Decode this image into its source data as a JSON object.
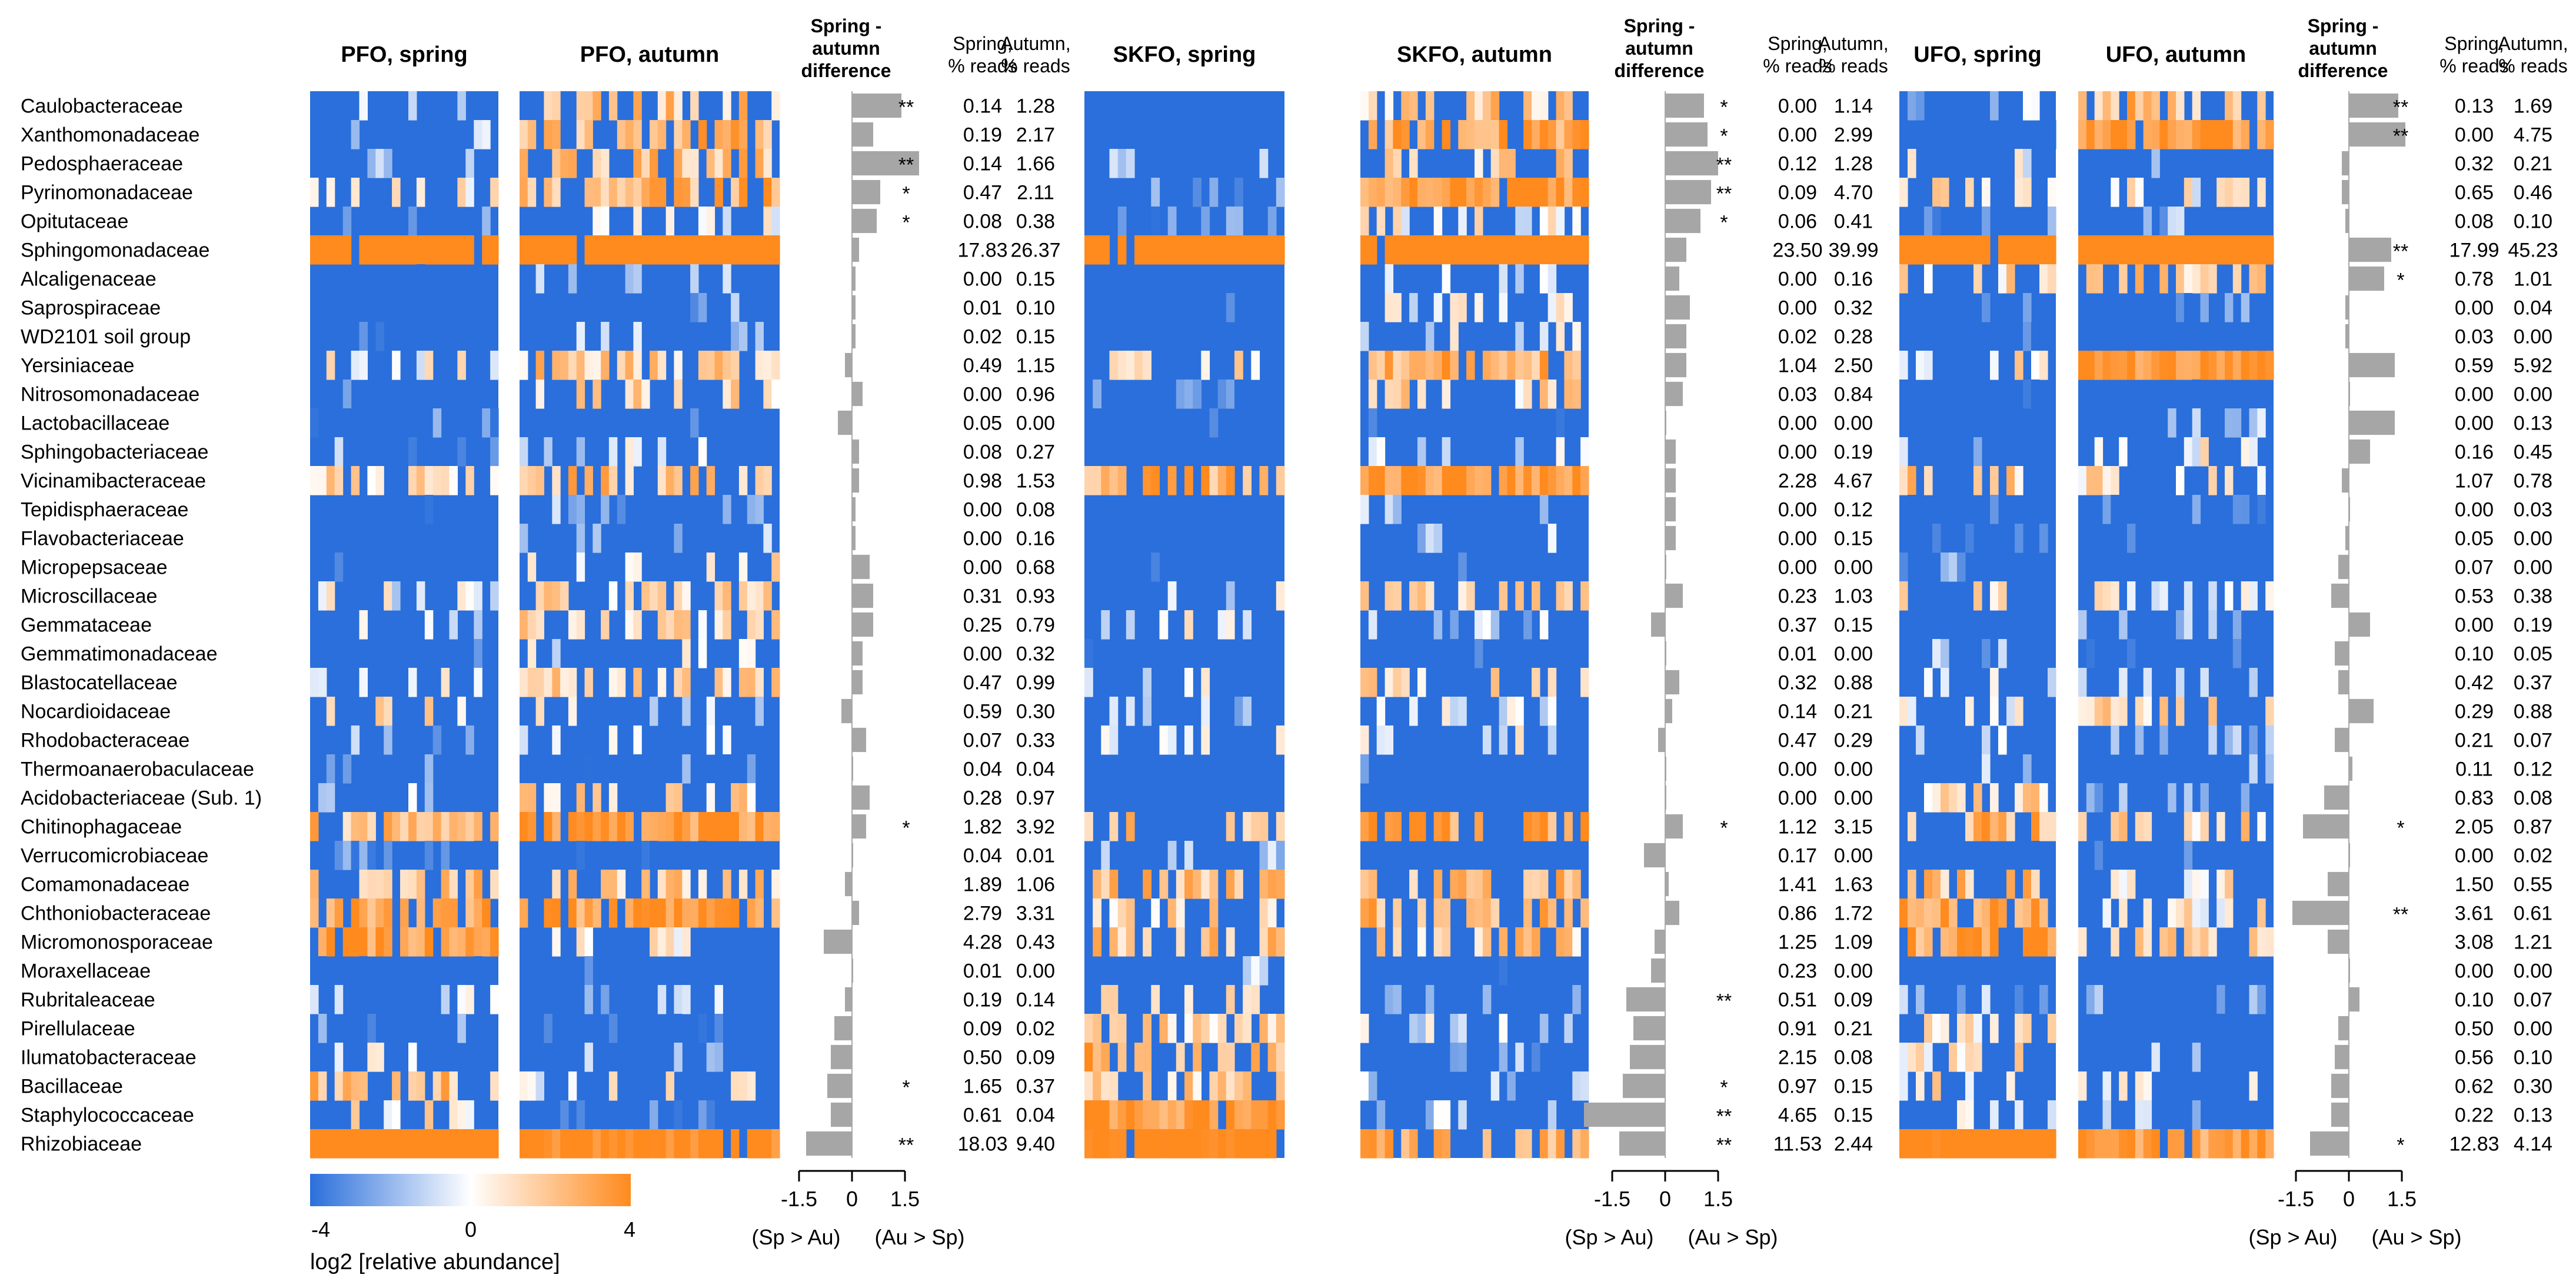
{
  "families": [
    "Caulobacteraceae",
    "Xanthomonadaceae",
    "Pedosphaeraceae",
    "Pyrinomonadaceae",
    "Opitutaceae",
    "Sphingomonadaceae",
    "Alcaligenaceae",
    "Saprospiraceae",
    "WD2101 soil group",
    "Yersiniaceae",
    "Nitrosomonadaceae",
    "Lactobacillaceae",
    "Sphingobacteriaceae",
    "Vicinamibacteraceae",
    "Tepidisphaeraceae",
    "Flavobacteriaceae",
    "Micropepsaceae",
    "Microscillaceae",
    "Gemmataceae",
    "Gemmatimonadaceae",
    "Blastocatellaceae",
    "Nocardioidaceae",
    "Rhodobacteraceae",
    "Thermoanaerobaculaceae",
    "Acidobacteriaceae (Sub. 1)",
    "Chitinophagaceae",
    "Verrucomicrobiaceae",
    "Comamonadaceae",
    "Chthoniobacteraceae",
    "Micromonosporaceae",
    "Moraxellaceae",
    "Rubritaleaceae",
    "Pirellulaceae",
    "Ilumatobacteraceae",
    "Bacillaceae",
    "Staphylococcaceae",
    "Rhizobiaceae"
  ],
  "headers": {
    "diff": [
      "Spring -",
      "autumn",
      "difference"
    ],
    "spring_pct": [
      "Spring,",
      "% reads"
    ],
    "autumn_pct": [
      "Autumn,",
      "% reads"
    ]
  },
  "colorbar": {
    "min_label": "-4",
    "mid_label": "0",
    "max_label": "4",
    "title": "log2 [relative abundance]",
    "low_color": "#2a6fdb",
    "mid_color": "#ffffff",
    "high_color": "#ff8a1e"
  },
  "diff_axis": {
    "ticks": [
      "-1.5",
      "0",
      "1.5"
    ],
    "left_label": "(Sp > Au)",
    "right_label": "(Au > Sp)"
  },
  "chart_data": {
    "type": "heatmap",
    "panels": [
      {
        "site": "PFO",
        "spring_title": "PFO, spring",
        "autumn_title": "PFO, autumn",
        "sig": [
          "**",
          "",
          "**",
          "*",
          "*",
          "",
          "",
          "",
          "",
          "",
          "",
          "",
          "",
          "",
          "",
          "",
          "",
          "",
          "",
          "",
          "",
          "",
          "",
          "",
          "",
          "*",
          "",
          "",
          "",
          "",
          "",
          "",
          "",
          "",
          "*",
          "",
          "**"
        ],
        "spring_pct": [
          "0.14",
          "0.19",
          "0.14",
          "0.47",
          "0.08",
          "17.83",
          "0.00",
          "0.01",
          "0.02",
          "0.49",
          "0.00",
          "0.05",
          "0.08",
          "0.98",
          "0.00",
          "0.00",
          "0.00",
          "0.31",
          "0.25",
          "0.00",
          "0.47",
          "0.59",
          "0.07",
          "0.04",
          "0.28",
          "1.82",
          "0.04",
          "1.89",
          "2.79",
          "4.28",
          "0.01",
          "0.19",
          "0.09",
          "0.50",
          "1.65",
          "0.61",
          "18.03"
        ],
        "autumn_pct": [
          "1.28",
          "2.17",
          "1.66",
          "2.11",
          "0.38",
          "26.37",
          "0.15",
          "0.10",
          "0.15",
          "1.15",
          "0.96",
          "0.00",
          "0.27",
          "1.53",
          "0.08",
          "0.16",
          "0.68",
          "0.93",
          "0.79",
          "0.32",
          "0.99",
          "0.30",
          "0.33",
          "0.04",
          "0.97",
          "3.92",
          "0.01",
          "1.06",
          "3.31",
          "0.43",
          "0.00",
          "0.14",
          "0.02",
          "0.09",
          "0.37",
          "0.04",
          "9.40"
        ],
        "diff": [
          1.4,
          0.6,
          1.9,
          0.8,
          0.7,
          0.2,
          0.1,
          0.1,
          0.1,
          -0.2,
          0.3,
          -0.4,
          0.2,
          0.2,
          0.1,
          0.1,
          0.5,
          0.6,
          0.6,
          0.3,
          0.3,
          -0.3,
          0.4,
          0.0,
          0.5,
          0.4,
          0.0,
          -0.2,
          0.2,
          -0.8,
          0.0,
          -0.2,
          -0.5,
          -0.6,
          -0.7,
          -0.6,
          -1.3
        ]
      },
      {
        "site": "SKFO",
        "spring_title": "SKFO, spring",
        "autumn_title": "SKFO, autumn",
        "sig": [
          "*",
          "*",
          "**",
          "**",
          "*",
          "",
          "",
          "",
          "",
          "",
          "",
          "",
          "",
          "",
          "",
          "",
          "",
          "",
          "",
          "",
          "",
          "",
          "",
          "",
          "",
          "*",
          "",
          "",
          "",
          "",
          "",
          "**",
          "",
          "",
          "*",
          "**",
          "**"
        ],
        "spring_pct": [
          "0.00",
          "0.00",
          "0.12",
          "0.09",
          "0.06",
          "23.50",
          "0.00",
          "0.00",
          "0.02",
          "1.04",
          "0.03",
          "0.00",
          "0.00",
          "2.28",
          "0.00",
          "0.00",
          "0.00",
          "0.23",
          "0.37",
          "0.01",
          "0.32",
          "0.14",
          "0.47",
          "0.00",
          "0.00",
          "1.12",
          "0.17",
          "1.41",
          "0.86",
          "1.25",
          "0.23",
          "0.51",
          "0.91",
          "2.15",
          "0.97",
          "4.65",
          "11.53"
        ],
        "autumn_pct": [
          "1.14",
          "2.99",
          "1.28",
          "4.70",
          "0.41",
          "39.99",
          "0.16",
          "0.32",
          "0.28",
          "2.50",
          "0.84",
          "0.00",
          "0.19",
          "4.67",
          "0.12",
          "0.15",
          "0.00",
          "1.03",
          "0.15",
          "0.00",
          "0.88",
          "0.21",
          "0.29",
          "0.00",
          "0.00",
          "3.15",
          "0.00",
          "1.63",
          "1.72",
          "1.09",
          "0.00",
          "0.09",
          "0.21",
          "0.08",
          "0.15",
          "0.15",
          "2.44"
        ],
        "diff": [
          1.1,
          1.2,
          1.5,
          1.3,
          1.0,
          0.6,
          0.4,
          0.7,
          0.6,
          0.6,
          0.5,
          0.0,
          0.3,
          0.3,
          0.3,
          0.3,
          0.0,
          0.5,
          -0.4,
          0.0,
          0.4,
          0.2,
          -0.2,
          0.0,
          0.0,
          0.5,
          -0.6,
          0.1,
          0.4,
          -0.3,
          -0.4,
          -1.1,
          -0.9,
          -1.0,
          -1.2,
          -2.3,
          -1.3
        ]
      },
      {
        "site": "UFO",
        "spring_title": "UFO, spring",
        "autumn_title": "UFO, autumn",
        "sig": [
          "**",
          "**",
          "",
          "",
          "",
          "**",
          "*",
          "",
          "",
          "",
          "",
          "",
          "",
          "",
          "",
          "",
          "",
          "",
          "",
          "",
          "",
          "",
          "",
          "",
          "",
          "*",
          "",
          "",
          "**",
          "",
          "",
          "",
          "",
          "",
          "",
          "",
          "*"
        ],
        "spring_pct": [
          "0.13",
          "0.00",
          "0.32",
          "0.65",
          "0.08",
          "17.99",
          "0.78",
          "0.00",
          "0.03",
          "0.59",
          "0.00",
          "0.00",
          "0.16",
          "1.07",
          "0.00",
          "0.05",
          "0.07",
          "0.53",
          "0.00",
          "0.10",
          "0.42",
          "0.29",
          "0.21",
          "0.11",
          "0.83",
          "2.05",
          "0.00",
          "1.50",
          "3.61",
          "3.08",
          "0.00",
          "0.10",
          "0.50",
          "0.56",
          "0.62",
          "0.22",
          "12.83"
        ],
        "autumn_pct": [
          "1.69",
          "4.75",
          "0.21",
          "0.46",
          "0.10",
          "45.23",
          "1.01",
          "0.04",
          "0.00",
          "5.92",
          "0.00",
          "0.13",
          "0.45",
          "0.78",
          "0.03",
          "0.00",
          "0.00",
          "0.38",
          "0.19",
          "0.05",
          "0.37",
          "0.88",
          "0.07",
          "0.12",
          "0.08",
          "0.87",
          "0.02",
          "0.55",
          "0.61",
          "1.21",
          "0.00",
          "0.07",
          "0.00",
          "0.10",
          "0.30",
          "0.13",
          "4.14"
        ],
        "diff": [
          1.4,
          1.6,
          -0.2,
          -0.2,
          -0.1,
          1.2,
          1.0,
          -0.1,
          -0.1,
          1.3,
          0.0,
          1.3,
          0.6,
          -0.2,
          0.0,
          -0.1,
          -0.3,
          -0.5,
          0.6,
          -0.4,
          -0.3,
          0.7,
          -0.4,
          0.1,
          -0.7,
          -1.3,
          0.0,
          -0.6,
          -1.6,
          -0.6,
          0.0,
          0.3,
          -0.3,
          -0.4,
          -0.5,
          -0.5,
          -1.1
        ]
      }
    ]
  }
}
